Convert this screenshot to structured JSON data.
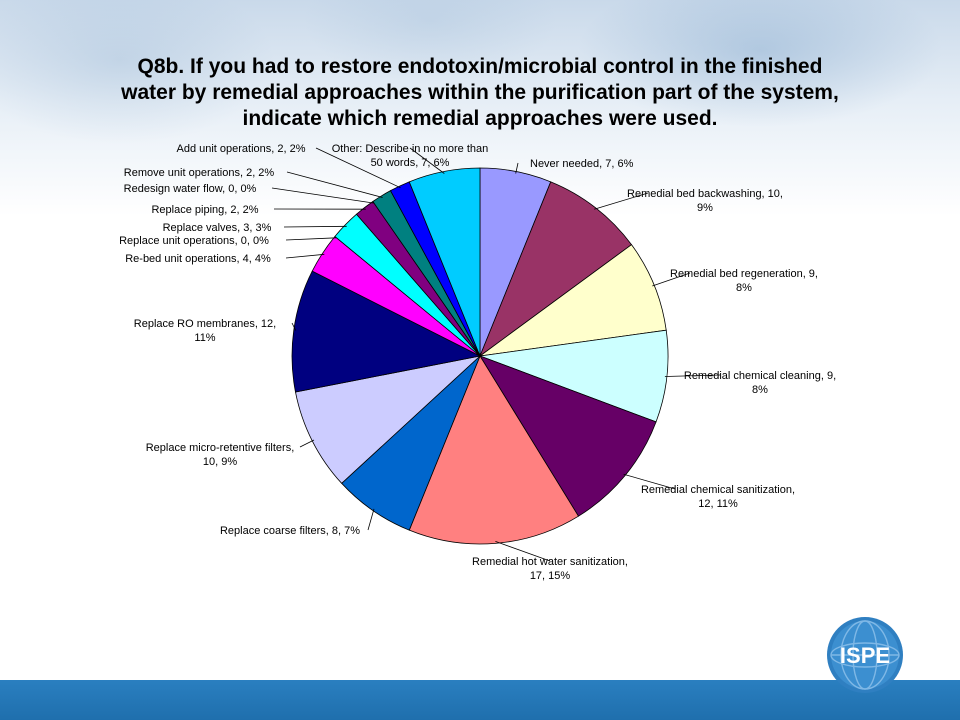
{
  "slide": {
    "title_lines": [
      "Q8b. If you had to restore endotoxin/microbial control in the finished",
      "water by remedial approaches within the purification part of the system,",
      "indicate which remedial approaches were used."
    ],
    "logo_text": "ISPE"
  },
  "colors": {
    "footer_bar": "#2a7fc0",
    "logo_blue": "#2f7fc1"
  },
  "chart_data": {
    "type": "pie",
    "title": "Q8b. If you had to restore endotoxin/microbial control in the finished water by remedial approaches within the purification part of the system, indicate which remedial approaches were used.",
    "slices": [
      {
        "name": "Never needed",
        "value": 7,
        "percent": 6,
        "color": "#9999ff",
        "label_lines": [
          "Never needed, 7, 6%"
        ]
      },
      {
        "name": "Remedial bed backwashing",
        "value": 10,
        "percent": 9,
        "color": "#993366",
        "label_lines": [
          "Remedial bed backwashing, 10,",
          "9%"
        ]
      },
      {
        "name": "Remedial bed regeneration",
        "value": 9,
        "percent": 8,
        "color": "#ffffcc",
        "label_lines": [
          "Remedial bed regeneration, 9,",
          "8%"
        ]
      },
      {
        "name": "Remedial chemical cleaning",
        "value": 9,
        "percent": 8,
        "color": "#ccffff",
        "label_lines": [
          "Remedial chemical cleaning, 9,",
          "8%"
        ]
      },
      {
        "name": "Remedial chemical sanitization",
        "value": 12,
        "percent": 11,
        "color": "#660066",
        "label_lines": [
          "Remedial chemical sanitization,",
          "12, 11%"
        ]
      },
      {
        "name": "Remedial hot water sanitization",
        "value": 17,
        "percent": 15,
        "color": "#ff8080",
        "label_lines": [
          "Remedial hot water sanitization,",
          "17, 15%"
        ]
      },
      {
        "name": "Replace coarse filters",
        "value": 8,
        "percent": 7,
        "color": "#0066cc",
        "label_lines": [
          "Replace coarse filters, 8, 7%"
        ]
      },
      {
        "name": "Replace micro-retentive filters",
        "value": 10,
        "percent": 9,
        "color": "#ccccff",
        "label_lines": [
          "Replace micro-retentive filters,",
          "10, 9%"
        ]
      },
      {
        "name": "Replace RO membranes",
        "value": 12,
        "percent": 11,
        "color": "#000080",
        "label_lines": [
          "Replace RO membranes, 12,",
          "11%"
        ]
      },
      {
        "name": "Re-bed unit operations",
        "value": 4,
        "percent": 4,
        "color": "#ff00ff",
        "label_lines": [
          "Re-bed unit operations, 4, 4%"
        ]
      },
      {
        "name": "Replace unit operations",
        "value": 0,
        "percent": 0,
        "color": "#ffff00",
        "label_lines": [
          "Replace unit operations, 0, 0%"
        ]
      },
      {
        "name": "Replace valves",
        "value": 3,
        "percent": 3,
        "color": "#00ffff",
        "label_lines": [
          "Replace valves, 3, 3%"
        ]
      },
      {
        "name": "Replace piping",
        "value": 2,
        "percent": 2,
        "color": "#800080",
        "label_lines": [
          "Replace piping, 2, 2%"
        ]
      },
      {
        "name": "Redesign water flow",
        "value": 0,
        "percent": 0,
        "color": "#800000",
        "label_lines": [
          "Redesign water flow, 0, 0%"
        ]
      },
      {
        "name": "Remove unit operations",
        "value": 2,
        "percent": 2,
        "color": "#008080",
        "label_lines": [
          "Remove unit operations, 2, 2%"
        ]
      },
      {
        "name": "Add unit operations",
        "value": 2,
        "percent": 2,
        "color": "#0000ff",
        "label_lines": [
          "Add unit operations, 2, 2%"
        ]
      },
      {
        "name": "Other: Describe in no more than 50 words",
        "value": 7,
        "percent": 6,
        "color": "#00ccff",
        "label_lines": [
          "Other: Describe in no more than",
          "50 words, 7, 6%"
        ]
      }
    ]
  }
}
